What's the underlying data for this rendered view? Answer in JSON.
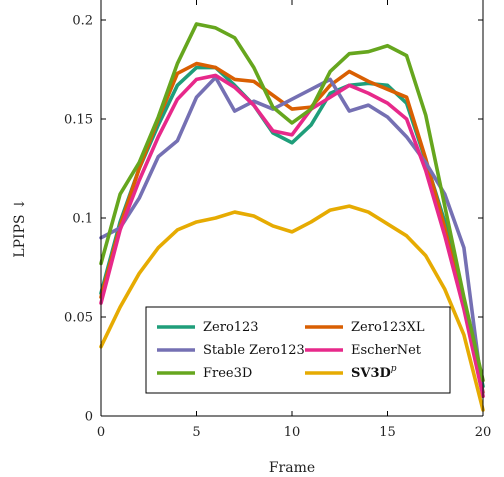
{
  "chart_data": {
    "type": "line",
    "xlabel": "Frame",
    "ylabel": "LPIPS ↓",
    "xlim": [
      0,
      20
    ],
    "ylim": [
      0,
      0.2
    ],
    "xticks": [
      0,
      5,
      10,
      15,
      20
    ],
    "yticks": [
      0,
      0.05,
      0.1,
      0.15,
      0.2
    ],
    "xtick_labels": [
      "0",
      "5",
      "10",
      "15",
      "20"
    ],
    "ytick_labels": [
      "0",
      "0.05",
      "0.1",
      "0.15",
      "0.2"
    ],
    "grid": false,
    "legend_position": "bottom-center",
    "x": [
      0,
      1,
      2,
      3,
      4,
      5,
      6,
      7,
      8,
      9,
      10,
      11,
      12,
      13,
      14,
      15,
      16,
      17,
      18,
      19,
      20
    ],
    "series": [
      {
        "name": "Zero123",
        "color": "#1f9e7a",
        "values": [
          0.062,
          0.098,
          0.125,
          0.147,
          0.167,
          0.176,
          0.176,
          0.167,
          0.157,
          0.143,
          0.138,
          0.147,
          0.163,
          0.167,
          0.168,
          0.167,
          0.158,
          0.129,
          0.098,
          0.058,
          0.015
        ]
      },
      {
        "name": "Zero123XL",
        "color": "#d95f02",
        "values": [
          0.06,
          0.096,
          0.125,
          0.15,
          0.173,
          0.178,
          0.176,
          0.17,
          0.169,
          0.162,
          0.155,
          0.156,
          0.167,
          0.174,
          0.169,
          0.165,
          0.161,
          0.13,
          0.095,
          0.055,
          0.012
        ]
      },
      {
        "name": "Stable Zero123",
        "color": "#7570b3",
        "values": [
          0.09,
          0.095,
          0.11,
          0.131,
          0.139,
          0.161,
          0.171,
          0.154,
          0.159,
          0.155,
          0.16,
          0.165,
          0.17,
          0.154,
          0.157,
          0.151,
          0.141,
          0.128,
          0.112,
          0.085,
          0.01
        ]
      },
      {
        "name": "EscherNet",
        "color": "#e7298a",
        "values": [
          0.057,
          0.094,
          0.119,
          0.141,
          0.16,
          0.17,
          0.172,
          0.166,
          0.157,
          0.144,
          0.142,
          0.155,
          0.161,
          0.167,
          0.163,
          0.158,
          0.15,
          0.124,
          0.091,
          0.054,
          0.01
        ]
      },
      {
        "name": "Free3D",
        "color": "#66a61e",
        "values": [
          0.077,
          0.112,
          0.128,
          0.151,
          0.178,
          0.198,
          0.196,
          0.191,
          0.176,
          0.156,
          0.148,
          0.155,
          0.174,
          0.183,
          0.184,
          0.187,
          0.182,
          0.152,
          0.106,
          0.06,
          0.018
        ]
      },
      {
        "name": "SV3D^p",
        "color": "#e6ab02",
        "values": [
          0.035,
          0.055,
          0.072,
          0.085,
          0.094,
          0.098,
          0.1,
          0.103,
          0.101,
          0.096,
          0.093,
          0.098,
          0.104,
          0.106,
          0.103,
          0.097,
          0.091,
          0.081,
          0.064,
          0.041,
          0.003
        ]
      }
    ],
    "legend": [
      {
        "label": "Zero123",
        "color": "#1f9e7a",
        "bold": false
      },
      {
        "label": "Zero123XL",
        "color": "#d95f02",
        "bold": false
      },
      {
        "label": "Stable Zero123",
        "color": "#7570b3",
        "bold": false
      },
      {
        "label": "EscherNet",
        "color": "#e7298a",
        "bold": false
      },
      {
        "label": "Free3D",
        "color": "#66a61e",
        "bold": false
      },
      {
        "label": "SV3D",
        "sup": "p",
        "color": "#e6ab02",
        "bold": true
      }
    ]
  }
}
